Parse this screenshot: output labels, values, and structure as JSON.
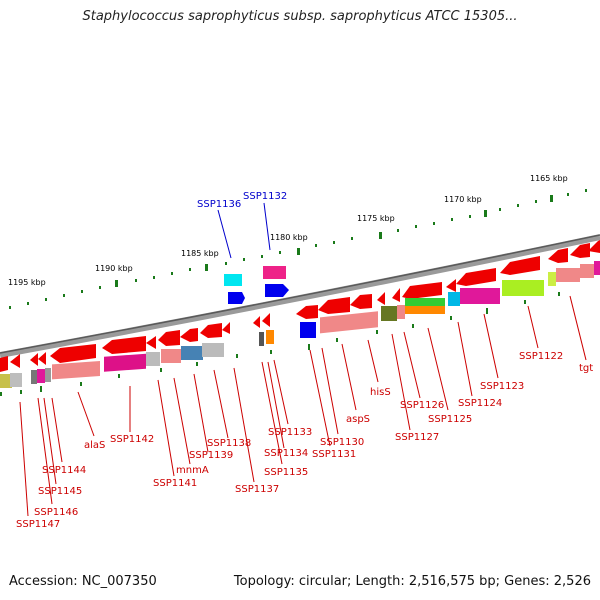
{
  "title": "Staphylococcus saprophyticus subsp. saprophyticus ATCC 15305...",
  "footer": {
    "accession": "Accession: NC_007350",
    "summary": "Topology: circular; Length: 2,516,575 bp; Genes: 2,526"
  },
  "scale_labels": [
    "1195 kbp",
    "1190 kbp",
    "1185 kbp",
    "1180 kbp",
    "1175 kbp",
    "1170 kbp",
    "1165 kbp"
  ],
  "blue_labels": [
    "SSP1136",
    "SSP1132"
  ],
  "gene_labels": [
    "SSP1147",
    "SSP1146",
    "SSP1145",
    "SSP1144",
    "alaS",
    "SSP1142",
    "SSP1141",
    "mnmA",
    "SSP1139",
    "SSP1138",
    "SSP1137",
    "SSP1135",
    "SSP1134",
    "SSP1133",
    "SSP1131",
    "SSP1130",
    "aspS",
    "hisS",
    "SSP1127",
    "SSP1126",
    "SSP1125",
    "SSP1124",
    "SSP1123",
    "SSP1122",
    "tgt"
  ],
  "colors": {
    "label_red": "#cc0000",
    "label_blue": "#0000cc",
    "tick_green": "#1a7a1a",
    "backbone": "#7a7a7a",
    "gene_red": "#ee0000"
  }
}
